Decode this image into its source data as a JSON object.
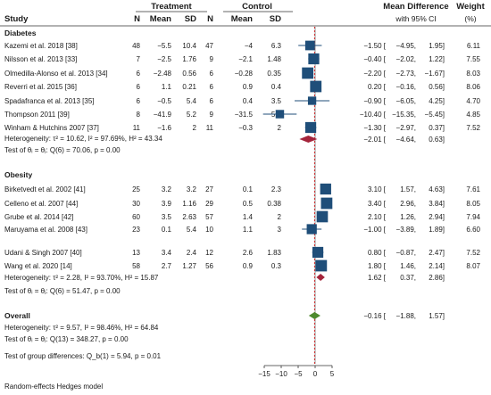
{
  "headers": {
    "study": "Study",
    "treatment": "Treatment",
    "control": "Control",
    "n": "N",
    "mean": "Mean",
    "sd": "SD",
    "md": "Mean Difference",
    "ci": "with 95% CI",
    "weight": "Weight",
    "weight_unit": "(%)"
  },
  "footnote": "Random-effects Hedges model",
  "chart_data": {
    "type": "forest",
    "x_ticks": [
      -15,
      -10,
      -5,
      0,
      5
    ],
    "xlim": [
      -18,
      6
    ],
    "null_line": 0,
    "overall_line": -0.16,
    "colors": {
      "study_marker": "#1f4e79",
      "subgroup_diamond": "#a4243b",
      "overall_diamond": "#4d8a2e",
      "ref_line": "#d62728",
      "ci_line": "#1f4e79"
    },
    "groups": [
      {
        "name": "Diabetes",
        "studies": [
          {
            "label": "Kazemi et al. 2018 [38]",
            "t_n": "48",
            "t_mean": "−5.5",
            "t_sd": "10.4",
            "c_n": "47",
            "c_mean": "−4",
            "c_sd": "6.3",
            "md": -1.5,
            "lo": -4.95,
            "hi": 1.95,
            "md_text": "−1.50 [",
            "lo_text": "−4.95,",
            "hi_text": "1.95]",
            "weight": "6.11",
            "w": 6.11
          },
          {
            "label": "Nilsson et al. 2013 [33]",
            "t_n": "7",
            "t_mean": "−2.5",
            "t_sd": "1.76",
            "c_n": "9",
            "c_mean": "−2.1",
            "c_sd": "1.48",
            "md": -0.4,
            "lo": -2.02,
            "hi": 1.22,
            "md_text": "−0.40 [",
            "lo_text": "−2.02,",
            "hi_text": "1.22]",
            "weight": "7.55",
            "w": 7.55
          },
          {
            "label": "Olmedilla-Alonso et al. 2013 [34]",
            "t_n": "6",
            "t_mean": "−2.48",
            "t_sd": "0.56",
            "c_n": "6",
            "c_mean": "−0.28",
            "c_sd": "0.35",
            "md": -2.2,
            "lo": -2.73,
            "hi": -1.67,
            "md_text": "−2.20 [",
            "lo_text": "−2.73,",
            "hi_text": "−1.67]",
            "weight": "8.03",
            "w": 8.03
          },
          {
            "label": "Reverri et al. 2015 [36]",
            "t_n": "6",
            "t_mean": "1.1",
            "t_sd": "0.21",
            "c_n": "6",
            "c_mean": "0.9",
            "c_sd": "0.4",
            "md": 0.2,
            "lo": -0.16,
            "hi": 0.56,
            "md_text": "0.20 [",
            "lo_text": "−0.16,",
            "hi_text": "0.56]",
            "weight": "8.06",
            "w": 8.06
          },
          {
            "label": "Spadafranca et al. 2013 [35]",
            "t_n": "6",
            "t_mean": "−0.5",
            "t_sd": "5.4",
            "c_n": "6",
            "c_mean": "0.4",
            "c_sd": "3.5",
            "md": -0.9,
            "lo": -6.05,
            "hi": 4.25,
            "md_text": "−0.90 [",
            "lo_text": "−6.05,",
            "hi_text": "4.25]",
            "weight": "4.70",
            "w": 4.7
          },
          {
            "label": "Thompson 2011 [39]",
            "t_n": "8",
            "t_mean": "−41.9",
            "t_sd": "5.2",
            "c_n": "9",
            "c_mean": "−31.5",
            "c_sd": "5.2",
            "md": -10.4,
            "lo": -15.35,
            "hi": -5.45,
            "md_text": "−10.40 [",
            "lo_text": "−15.35,",
            "hi_text": "−5.45]",
            "weight": "4.85",
            "w": 4.85
          },
          {
            "label": "Winham & Hutchins 2007 [37]",
            "t_n": "11",
            "t_mean": "−1.6",
            "t_sd": "2",
            "c_n": "11",
            "c_mean": "−0.3",
            "c_sd": "2",
            "md": -1.3,
            "lo": -2.97,
            "hi": 0.37,
            "md_text": "−1.30 [",
            "lo_text": "−2.97,",
            "hi_text": "0.37]",
            "weight": "7.52",
            "w": 7.52
          }
        ],
        "heterogeneity": "Heterogeneity: τ² = 10.62, I² = 97.69%, H² = 43.34",
        "test_theta": "Test of θᵢ = θⱼ: Q(6) = 70.06, p = 0.00",
        "pooled": {
          "md": -2.01,
          "lo": -4.64,
          "hi": 0.63,
          "md_text": "−2.01 [",
          "lo_text": "−4.64,",
          "hi_text": "0.63]"
        }
      },
      {
        "name": "Obesity",
        "studies": [
          {
            "label": "Birketvedt et al. 2002 [41]",
            "t_n": "25",
            "t_mean": "3.2",
            "t_sd": "3.2",
            "c_n": "27",
            "c_mean": "0.1",
            "c_sd": "2.3",
            "md": 3.1,
            "lo": 1.57,
            "hi": 4.63,
            "md_text": "3.10 [",
            "lo_text": "1.57,",
            "hi_text": "4.63]",
            "weight": "7.61",
            "w": 7.61
          },
          {
            "label": "Celleno et al. 2007 [44]",
            "t_n": "30",
            "t_mean": "3.9",
            "t_sd": "1.16",
            "c_n": "29",
            "c_mean": "0.5",
            "c_sd": "0.38",
            "md": 3.4,
            "lo": 2.96,
            "hi": 3.84,
            "md_text": "3.40 [",
            "lo_text": "2.96,",
            "hi_text": "3.84]",
            "weight": "8.05",
            "w": 8.05
          },
          {
            "label": "Grube et al. 2014 [42]",
            "t_n": "60",
            "t_mean": "3.5",
            "t_sd": "2.63",
            "c_n": "57",
            "c_mean": "1.4",
            "c_sd": "2",
            "md": 2.1,
            "lo": 1.26,
            "hi": 2.94,
            "md_text": "2.10 [",
            "lo_text": "1.26,",
            "hi_text": "2.94]",
            "weight": "7.94",
            "w": 7.94
          },
          {
            "label": "Maruyama et al. 2008 [43]",
            "t_n": "23",
            "t_mean": "0.1",
            "t_sd": "5.4",
            "c_n": "10",
            "c_mean": "1.1",
            "c_sd": "3",
            "md": -1.0,
            "lo": -3.89,
            "hi": 1.89,
            "md_text": "−1.00 [",
            "lo_text": "−3.89,",
            "hi_text": "1.89]",
            "weight": "6.60",
            "w": 6.6
          },
          {
            "label": "",
            "t_n": "",
            "t_mean": "",
            "t_sd": "",
            "c_n": "",
            "c_mean": "",
            "c_sd": "",
            "md": null,
            "lo": null,
            "hi": null,
            "md_text": "",
            "lo_text": "",
            "hi_text": "",
            "weight": "",
            "w": 0
          },
          {
            "label": "Udani & Singh 2007 [40]",
            "t_n": "13",
            "t_mean": "3.4",
            "t_sd": "2.4",
            "c_n": "12",
            "c_mean": "2.6",
            "c_sd": "1.83",
            "md": 0.8,
            "lo": -0.87,
            "hi": 2.47,
            "md_text": "0.80 [",
            "lo_text": "−0.87,",
            "hi_text": "2.47]",
            "weight": "7.52",
            "w": 7.52
          },
          {
            "label": "Wang et al. 2020 [14]",
            "t_n": "58",
            "t_mean": "2.7",
            "t_sd": "1.27",
            "c_n": "56",
            "c_mean": "0.9",
            "c_sd": "0.3",
            "md": 1.8,
            "lo": 1.46,
            "hi": 2.14,
            "md_text": "1.80 [",
            "lo_text": "1.46,",
            "hi_text": "2.14]",
            "weight": "8.07",
            "w": 8.07
          }
        ],
        "heterogeneity": "Heterogeneity: τ² = 2.28, I² = 93.70%, H² = 15.87",
        "test_theta": "Test of θᵢ = θⱼ: Q(6) = 51.47, p = 0.00",
        "pooled": {
          "md": 1.62,
          "lo": 0.37,
          "hi": 2.86,
          "md_text": "1.62 [",
          "lo_text": "0.37,",
          "hi_text": "2.86]"
        }
      }
    ],
    "overall": {
      "label": "Overall",
      "heterogeneity": "Heterogeneity: τ² = 9.57, I² = 98.46%, H² = 64.84",
      "test_theta": "Test of θᵢ = θⱼ: Q(13) = 348.27, p = 0.00",
      "group_diff": "Test of group differences: Q_b(1) = 5.94, p = 0.01",
      "md": -0.16,
      "lo": -1.88,
      "hi": 1.57,
      "md_text": "−0.16 [",
      "lo_text": "−1.88,",
      "hi_text": "1.57]"
    }
  }
}
